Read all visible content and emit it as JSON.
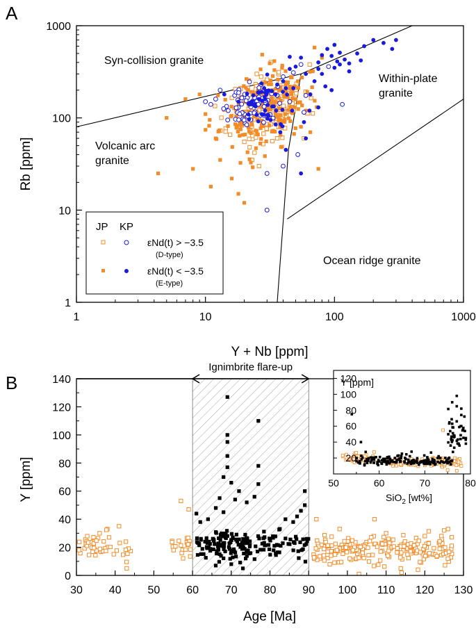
{
  "colors": {
    "jp": "#f28c28",
    "kp": "#1a1adc",
    "ink": "#000000",
    "hatch": "#9a9a9a",
    "black_pts": "#000000"
  },
  "chart_data": [
    {
      "panel": "A",
      "type": "scatter",
      "scale": "log-log",
      "xlabel": "Y + Nb [ppm]",
      "ylabel": "Rb [ppm]",
      "xlim": [
        1,
        1000
      ],
      "ylim": [
        1,
        1000
      ],
      "xticks": [
        {
          "v": 1,
          "label": "1"
        },
        {
          "v": 10,
          "label": "10"
        },
        {
          "v": 100,
          "label": "100"
        },
        {
          "v": 1000,
          "label": "1000"
        }
      ],
      "yticks": [
        {
          "v": 1,
          "label": "1"
        },
        {
          "v": 10,
          "label": "10"
        },
        {
          "v": 100,
          "label": "100"
        },
        {
          "v": 1000,
          "label": "1000"
        }
      ],
      "fields": [
        {
          "name": "syn_collision",
          "label_lines": [
            "Syn-collision granite"
          ]
        },
        {
          "name": "within_plate",
          "label_lines": [
            "Within-plate",
            "granite"
          ]
        },
        {
          "name": "volcanic_arc",
          "label_lines": [
            "Volcanic arc",
            "granite"
          ]
        },
        {
          "name": "ocean_ridge",
          "label_lines": [
            "Ocean ridge granite"
          ]
        }
      ],
      "boundaries": [
        {
          "from": [
            1,
            80
          ],
          "to": [
            55,
            300
          ]
        },
        {
          "from": [
            55,
            300
          ],
          "to": [
            400,
            1000
          ]
        },
        {
          "from": [
            55,
            300
          ],
          "to": [
            50,
            130
          ]
        },
        {
          "from": [
            50,
            130
          ],
          "to": [
            44,
            45
          ]
        },
        {
          "from": [
            44,
            45
          ],
          "to": [
            36,
            1
          ]
        },
        {
          "from": [
            43,
            8
          ],
          "to": [
            1000,
            160
          ]
        }
      ],
      "legend": {
        "position": "bottom-left",
        "col_jp": "JP",
        "col_kp": "KP",
        "row1_label": "εNd(t) > −3.5",
        "row1_sub": "(D-type)",
        "row2_label": "εNd(t) < −3.5",
        "row2_sub": "(E-type)"
      },
      "series": [
        {
          "name": "JP D-type",
          "marker": "open-square",
          "color": "jp",
          "cluster": {
            "xc": 30,
            "yc": 130,
            "xspread": 0.26,
            "yspread": 0.32,
            "n": 170,
            "seed": 11
          },
          "points": [
            [
              20,
              55
            ],
            [
              22,
              48
            ],
            [
              24,
              42
            ],
            [
              23,
              35
            ],
            [
              26,
              30
            ],
            [
              28,
              52
            ],
            [
              33,
              56
            ],
            [
              36,
              60
            ],
            [
              38,
              245
            ],
            [
              40,
              190
            ],
            [
              45,
              140
            ],
            [
              58,
              60
            ],
            [
              30,
              260
            ],
            [
              27,
              280
            ],
            [
              25,
              300
            ],
            [
              18,
              190
            ],
            [
              16,
              165
            ]
          ]
        },
        {
          "name": "JP E-type",
          "marker": "filled-square",
          "color": "jp",
          "cluster": {
            "xc": 28,
            "yc": 120,
            "xspread": 0.3,
            "yspread": 0.36,
            "n": 200,
            "seed": 23
          },
          "points": [
            [
              4.3,
              25
            ],
            [
              5,
              100
            ],
            [
              7,
              160
            ],
            [
              8,
              28
            ],
            [
              9,
              180
            ],
            [
              10,
              110
            ],
            [
              11,
              18
            ],
            [
              12,
              60
            ],
            [
              13,
              35
            ],
            [
              16,
              22
            ],
            [
              18,
              15
            ],
            [
              20,
              12
            ],
            [
              70,
              580
            ],
            [
              80,
              450
            ],
            [
              75,
              28
            ],
            [
              65,
              70
            ],
            [
              55,
              80
            ],
            [
              60,
              120
            ],
            [
              45,
              210
            ],
            [
              42,
              230
            ],
            [
              68,
              320
            ],
            [
              52,
              250
            ]
          ]
        },
        {
          "name": "KP D-type",
          "marker": "open-circle",
          "color": "kp",
          "cluster": {
            "xc": 23,
            "yc": 135,
            "xspread": 0.17,
            "yspread": 0.2,
            "n": 55,
            "seed": 37
          },
          "points": [
            [
              30,
              10
            ],
            [
              30,
              25
            ],
            [
              40,
              30
            ],
            [
              52,
              40
            ],
            [
              45,
              150
            ],
            [
              18,
              130
            ],
            [
              10,
              150
            ],
            [
              11,
              140
            ],
            [
              12,
              160
            ],
            [
              27,
              230
            ],
            [
              15,
              120
            ],
            [
              20,
              110
            ],
            [
              115,
              140
            ],
            [
              90,
              360
            ],
            [
              55,
              380
            ],
            [
              48,
              310
            ],
            [
              60,
              175
            ],
            [
              58,
              115
            ],
            [
              40,
              280
            ],
            [
              13,
              200
            ]
          ]
        },
        {
          "name": "KP E-type",
          "marker": "filled-circle",
          "color": "kp",
          "cluster": {
            "xc": 30,
            "yc": 150,
            "xspread": 0.17,
            "yspread": 0.22,
            "n": 45,
            "seed": 41
          },
          "points": [
            [
              14,
              180
            ],
            [
              18,
              150
            ],
            [
              22,
              140
            ],
            [
              26,
              160
            ],
            [
              29,
              120
            ],
            [
              32,
              95
            ],
            [
              35,
              85
            ],
            [
              38,
              70
            ],
            [
              42,
              45
            ],
            [
              48,
              210
            ],
            [
              55,
              25
            ],
            [
              60,
              60
            ],
            [
              64,
              120
            ],
            [
              70,
              250
            ],
            [
              75,
              400
            ],
            [
              80,
              300
            ],
            [
              88,
              560
            ],
            [
              95,
              470
            ],
            [
              100,
              620
            ],
            [
              110,
              510
            ],
            [
              120,
              430
            ],
            [
              130,
              390
            ],
            [
              150,
              500
            ],
            [
              170,
              600
            ],
            [
              200,
              700
            ],
            [
              240,
              650
            ],
            [
              280,
              560
            ],
            [
              300,
              700
            ],
            [
              65,
              180
            ],
            [
              85,
              220
            ],
            [
              95,
              200
            ],
            [
              60,
              300
            ],
            [
              50,
              360
            ],
            [
              45,
              340
            ],
            [
              40,
              250
            ],
            [
              110,
              380
            ],
            [
              130,
              320
            ],
            [
              160,
              420
            ],
            [
              75,
              130
            ],
            [
              58,
              90
            ],
            [
              47,
              120
            ],
            [
              36,
              230
            ],
            [
              42,
              210
            ],
            [
              75,
              340
            ],
            [
              100,
              350
            ],
            [
              105,
              410
            ],
            [
              55,
              450
            ],
            [
              45,
              460
            ],
            [
              80,
              480
            ]
          ]
        }
      ]
    },
    {
      "panel": "B",
      "type": "scatter",
      "xlabel": "Age [Ma]",
      "ylabel": "Y [ppm]",
      "xlim": [
        30,
        130
      ],
      "ylim": [
        0,
        140
      ],
      "xticks": [
        30,
        40,
        50,
        60,
        70,
        80,
        90,
        100,
        110,
        120,
        130
      ],
      "yticks": [
        0,
        20,
        40,
        60,
        80,
        100,
        120,
        140
      ],
      "shaded_interval": [
        60,
        90
      ],
      "annotation": {
        "text": "Ignimbrite flare-up",
        "from": 30,
        "to": 90
      },
      "series": [
        {
          "name": "JP",
          "marker": "open-square",
          "color": "jp",
          "groups": [
            {
              "x0": 30.5,
              "x1": 44,
              "n": 45,
              "yc": 20,
              "ys": 6,
              "seed": 51
            },
            {
              "x0": 54,
              "x1": 60,
              "n": 22,
              "yc": 21,
              "ys": 5,
              "seed": 52
            },
            {
              "x0": 91,
              "x1": 127,
              "n": 220,
              "yc": 18,
              "ys": 7,
              "seed": 53
            }
          ],
          "points": [
            [
              41,
              35
            ],
            [
              38,
              33
            ],
            [
              36,
              30
            ],
            [
              43,
              5
            ],
            [
              59,
              47
            ],
            [
              57,
              53
            ],
            [
              103,
              1
            ],
            [
              114,
              2
            ],
            [
              125,
              32
            ],
            [
              126,
              33
            ],
            [
              107,
              40
            ],
            [
              92,
              40
            ],
            [
              98,
              33
            ],
            [
              110,
              30
            ],
            [
              120,
              28
            ]
          ]
        },
        {
          "name": "KP",
          "marker": "filled-square",
          "color": "black_pts",
          "groups": [
            {
              "x0": 61,
              "x1": 75,
              "n": 120,
              "yc": 22,
              "ys": 8,
              "seed": 61
            },
            {
              "x0": 76,
              "x1": 90,
              "n": 55,
              "yc": 22,
              "ys": 7,
              "seed": 62
            }
          ],
          "points": [
            [
              69,
              127
            ],
            [
              69,
              100
            ],
            [
              69,
              95
            ],
            [
              69,
              85
            ],
            [
              69,
              77
            ],
            [
              68,
              70
            ],
            [
              70,
              66
            ],
            [
              67,
              55
            ],
            [
              72,
              60
            ],
            [
              71,
              54
            ],
            [
              77,
              110
            ],
            [
              77,
              78
            ],
            [
              77,
              65
            ],
            [
              74,
              52
            ],
            [
              76,
              56
            ],
            [
              61,
              44
            ],
            [
              62,
              38
            ],
            [
              64,
              40
            ],
            [
              66,
              48
            ],
            [
              68,
              45
            ],
            [
              89,
              60
            ],
            [
              89,
              50
            ],
            [
              88,
              46
            ],
            [
              87,
              42
            ],
            [
              84,
              40
            ],
            [
              86,
              38
            ],
            [
              73,
              5
            ],
            [
              66,
              7
            ],
            [
              70,
              8
            ]
          ]
        }
      ]
    },
    {
      "panel": "B-inset",
      "type": "scatter",
      "title": "Y [ppm]",
      "xlabel": "SiO2 [wt%]",
      "xlabel_main": "SiO",
      "xlabel_sub": "2",
      "xlabel_end": " [wt%]",
      "xlim": [
        50,
        80
      ],
      "ylim": [
        0,
        130
      ],
      "xticks": [
        50,
        60,
        70,
        80
      ],
      "yticks": [
        20,
        40,
        60,
        80,
        100,
        120
      ],
      "series": [
        {
          "name": "JP",
          "marker": "open-square",
          "color": "jp",
          "groups": [
            {
              "x0": 52,
              "x1": 59,
              "n": 60,
              "yc": 19,
              "ys": 5,
              "seed": 71
            },
            {
              "x0": 62,
              "x1": 78,
              "n": 120,
              "yc": 14,
              "ys": 5,
              "seed": 72
            }
          ],
          "points": [
            [
              74,
              55
            ],
            [
              76,
              45
            ],
            [
              75,
              5
            ],
            [
              78,
              10
            ],
            [
              77,
              4
            ]
          ]
        },
        {
          "name": "KP",
          "marker": "filled-square",
          "color": "black_pts",
          "groups": [
            {
              "x0": 55,
              "x1": 76,
              "n": 170,
              "yc": 16,
              "ys": 6,
              "seed": 81
            },
            {
              "x0": 75,
              "x1": 79,
              "n": 40,
              "yc": 48,
              "ys": 22,
              "seed": 82
            }
          ],
          "points": [
            [
              77,
              127
            ],
            [
              76,
              112
            ],
            [
              76,
              105
            ],
            [
              77,
              98
            ],
            [
              76,
              90
            ],
            [
              77,
              85
            ],
            [
              78,
              82
            ],
            [
              78,
              74
            ],
            [
              77,
              66
            ],
            [
              78,
              60
            ],
            [
              76,
              63
            ],
            [
              54,
              75
            ],
            [
              56,
              40
            ],
            [
              79,
              45
            ],
            [
              79,
              38
            ]
          ]
        }
      ]
    }
  ],
  "labels": {
    "panel_a": "A",
    "panel_b": "B"
  }
}
